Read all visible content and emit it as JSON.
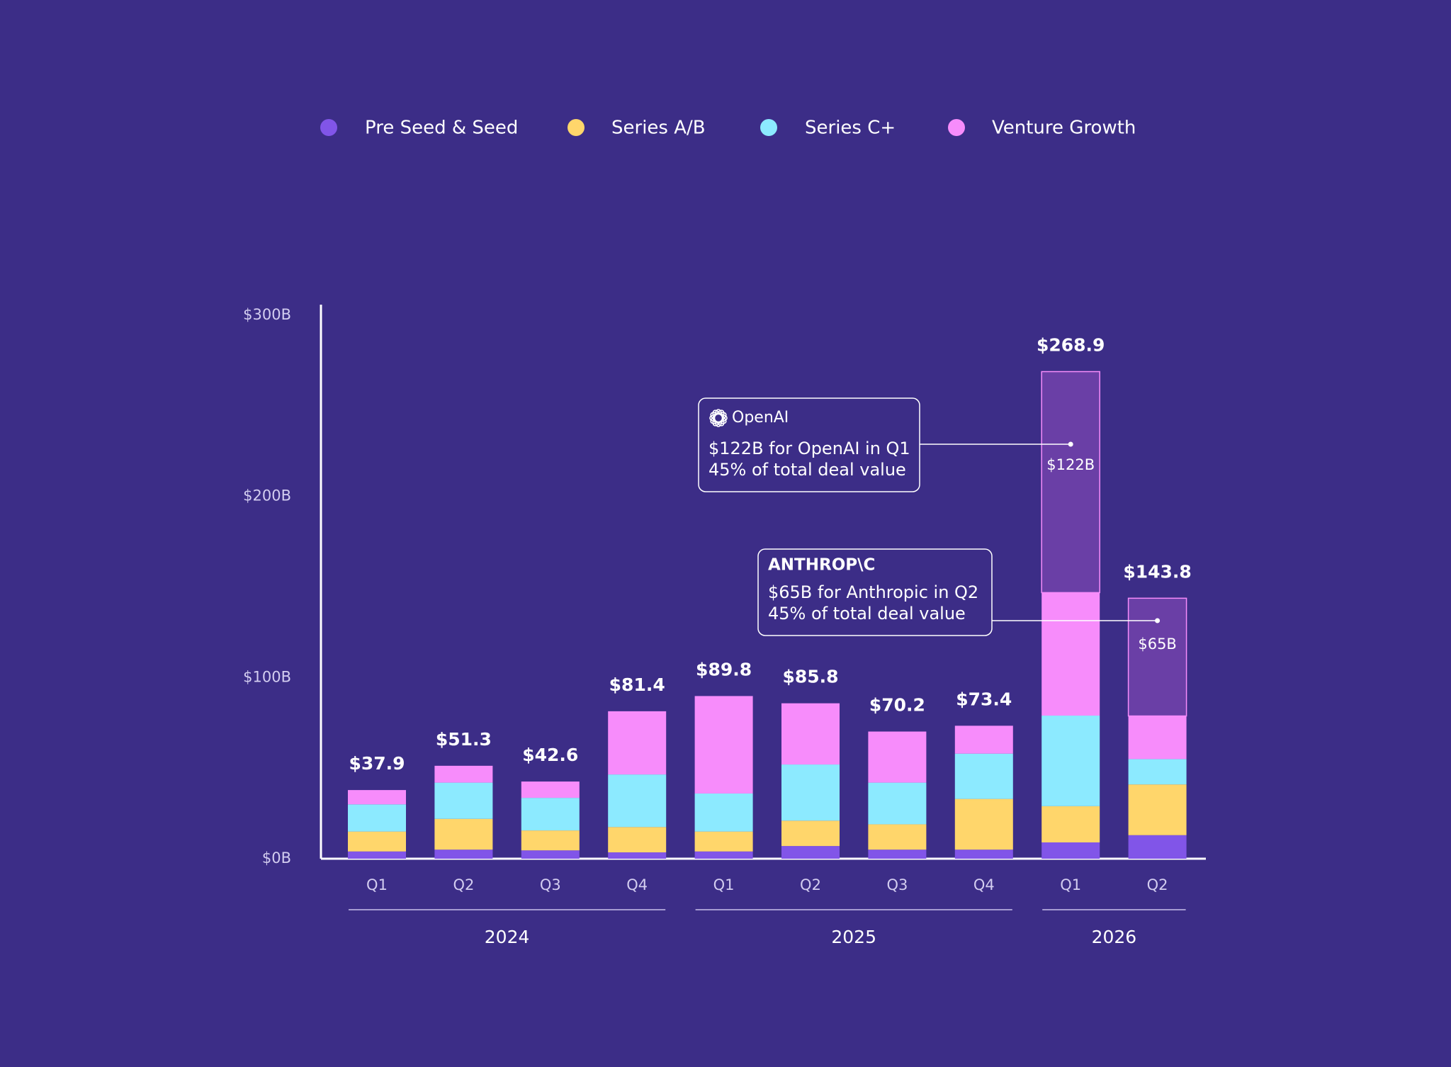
{
  "chart_data": {
    "type": "stacked-bar",
    "groups": [
      {
        "label": "2024",
        "categories": [
          "Q1",
          "Q2",
          "Q3",
          "Q4"
        ]
      },
      {
        "label": "2025",
        "categories": [
          "Q1",
          "Q2",
          "Q3",
          "Q4"
        ]
      },
      {
        "label": "2026",
        "categories": [
          "Q1",
          "Q2"
        ]
      }
    ],
    "series": [
      {
        "name": "Pre Seed & Seed",
        "color": "#8155e8",
        "values": [
          4,
          5,
          4.6,
          3.5,
          4,
          7,
          5,
          5,
          9,
          13
        ]
      },
      {
        "name": "Series A/B",
        "color": "#ffd66b",
        "values": [
          11,
          17,
          11,
          14,
          11,
          14,
          14,
          28,
          20,
          28
        ]
      },
      {
        "name": "Series C+",
        "color": "#8ceaff",
        "values": [
          15,
          20,
          18,
          29,
          21,
          31,
          23,
          25,
          50,
          14
        ]
      },
      {
        "name": "Venture Growth",
        "color": "#f78cfb",
        "values": [
          7.9,
          9.3,
          9,
          34.9,
          53.8,
          33.8,
          28.2,
          15.4,
          67.9,
          23.8
        ]
      },
      {
        "color": "#6a3fa6",
        "values": [
          null,
          null,
          null,
          null,
          null,
          null,
          null,
          null,
          122,
          65
        ],
        "value_labels": [
          null,
          null,
          null,
          null,
          null,
          null,
          null,
          null,
          "$122B",
          "$65B"
        ]
      }
    ],
    "totals": {
      "values": [
        37.9,
        51.3,
        42.6,
        81.4,
        89.8,
        85.8,
        70.2,
        73.4,
        268.9,
        143.8
      ],
      "value_labels": [
        "$37.9",
        "$51.3",
        "$42.6",
        "$81.4",
        "$89.8",
        "$85.8",
        "$70.2",
        "$73.4",
        "$268.9",
        "$143.8"
      ]
    },
    "ylim": [
      0,
      300
    ],
    "yticks": [
      {
        "value": 0,
        "label": "$0B"
      },
      {
        "value": 100,
        "label": "$100B"
      },
      {
        "value": 200,
        "label": "$200B"
      },
      {
        "value": 300,
        "label": "$300B"
      }
    ],
    "annotations": [
      {
        "logo": "OpenAI",
        "lines": [
          "$122B for OpenAI in Q1",
          "45% of total deal value"
        ]
      },
      {
        "logo": "ANTHROP\\C",
        "lines": [
          "$65B for Anthropic in Q2",
          "45% of total deal value"
        ]
      }
    ]
  }
}
